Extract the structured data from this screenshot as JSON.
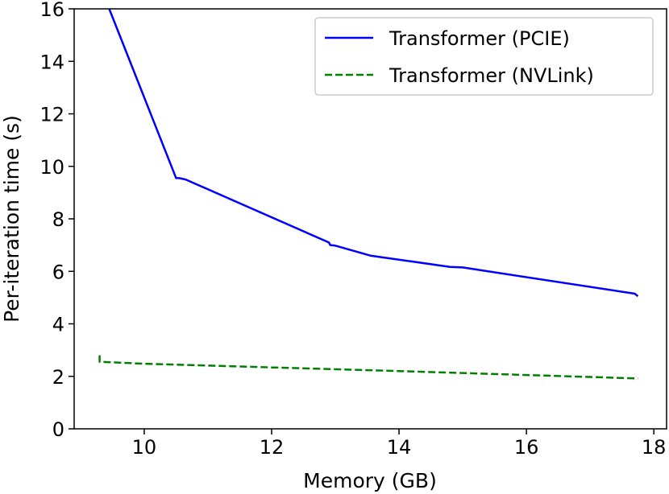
{
  "chart_data": {
    "type": "line",
    "title": "",
    "xlabel": "Memory (GB)",
    "ylabel": "Per-iteration time (s)",
    "xlim": [
      8.9,
      18.2
    ],
    "ylim": [
      0,
      16
    ],
    "xticks": [
      10,
      12,
      14,
      16,
      18
    ],
    "yticks": [
      0,
      2,
      4,
      6,
      8,
      10,
      12,
      14,
      16
    ],
    "grid": false,
    "legend_position": "top-right",
    "series": [
      {
        "name": "Transformer (PCIE)",
        "color": "#0000ff",
        "linestyle": "solid",
        "x": [
          9.45,
          10.5,
          10.55,
          10.65,
          12.9,
          12.92,
          13.0,
          13.55,
          14.8,
          15.0,
          17.7,
          17.75
        ],
        "y": [
          16.0,
          9.55,
          9.55,
          9.5,
          7.1,
          7.0,
          6.98,
          6.6,
          6.17,
          6.15,
          5.15,
          5.05
        ]
      },
      {
        "name": "Transformer (NVLink)",
        "color": "#008000",
        "linestyle": "dashed",
        "x": [
          9.3,
          9.3,
          9.35,
          10.0,
          12.0,
          14.0,
          16.0,
          17.75
        ],
        "y": [
          2.8,
          2.55,
          2.55,
          2.48,
          2.34,
          2.2,
          2.05,
          1.92
        ]
      }
    ]
  }
}
